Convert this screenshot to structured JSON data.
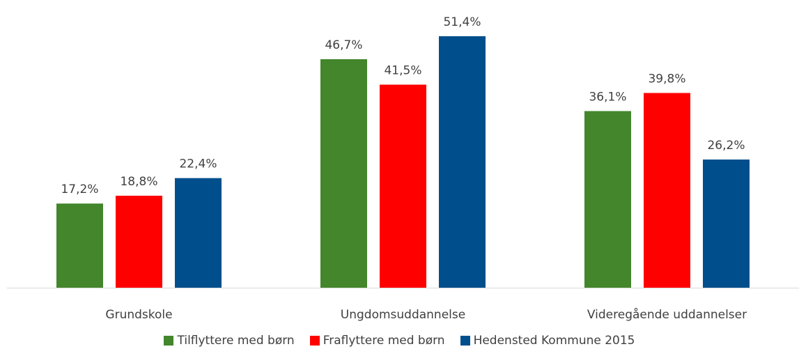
{
  "chart_data": {
    "type": "bar",
    "categories": [
      "Grundskole",
      "Ungdomsuddannelse",
      "Videregående uddannelser"
    ],
    "series": [
      {
        "name": "Tilflyttere med børn",
        "color": "#43862b",
        "values": [
          17.2,
          46.7,
          36.1
        ],
        "value_labels": [
          "17,2%",
          "46,7%",
          "36,1%"
        ]
      },
      {
        "name": "Fraflyttere med børn",
        "color": "#ff0000",
        "values": [
          18.8,
          41.5,
          39.8
        ],
        "value_labels": [
          "18,8%",
          "41,5%",
          "39,8%"
        ]
      },
      {
        "name": "Hedensted Kommune 2015",
        "color": "#004f8c",
        "values": [
          22.4,
          51.4,
          26.2
        ],
        "value_labels": [
          "22,4%",
          "51,4%",
          "26,2%"
        ]
      }
    ],
    "legend": "bottom"
  }
}
